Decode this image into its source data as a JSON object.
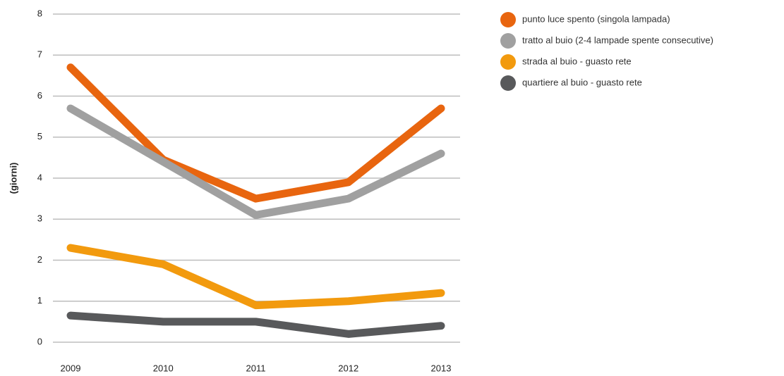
{
  "chart_data": {
    "type": "line",
    "y_label": "(giorni)",
    "categories": [
      "2009",
      "2010",
      "2011",
      "2012",
      "2013"
    ],
    "series": [
      {
        "name": "punto luce spento (singola lampada)",
        "color": "#e8650f",
        "values": [
          6.7,
          4.45,
          3.5,
          3.9,
          5.7
        ]
      },
      {
        "name": "tratto al buio (2-4 lampade spente consecutive)",
        "color": "#a0a0a0",
        "values": [
          5.7,
          4.4,
          3.1,
          3.5,
          4.6
        ]
      },
      {
        "name": "strada al buio - guasto rete",
        "color": "#f29a0e",
        "values": [
          2.3,
          1.9,
          0.9,
          1.0,
          1.2
        ]
      },
      {
        "name": "quartiere al buio - guasto rete",
        "color": "#58595b",
        "values": [
          0.65,
          0.5,
          0.5,
          0.2,
          0.4
        ]
      }
    ],
    "ylim": [
      0,
      8
    ],
    "yticks": [
      0,
      1,
      2,
      3,
      4,
      5,
      6,
      7,
      8
    ],
    "grid": true,
    "legend": "right"
  }
}
